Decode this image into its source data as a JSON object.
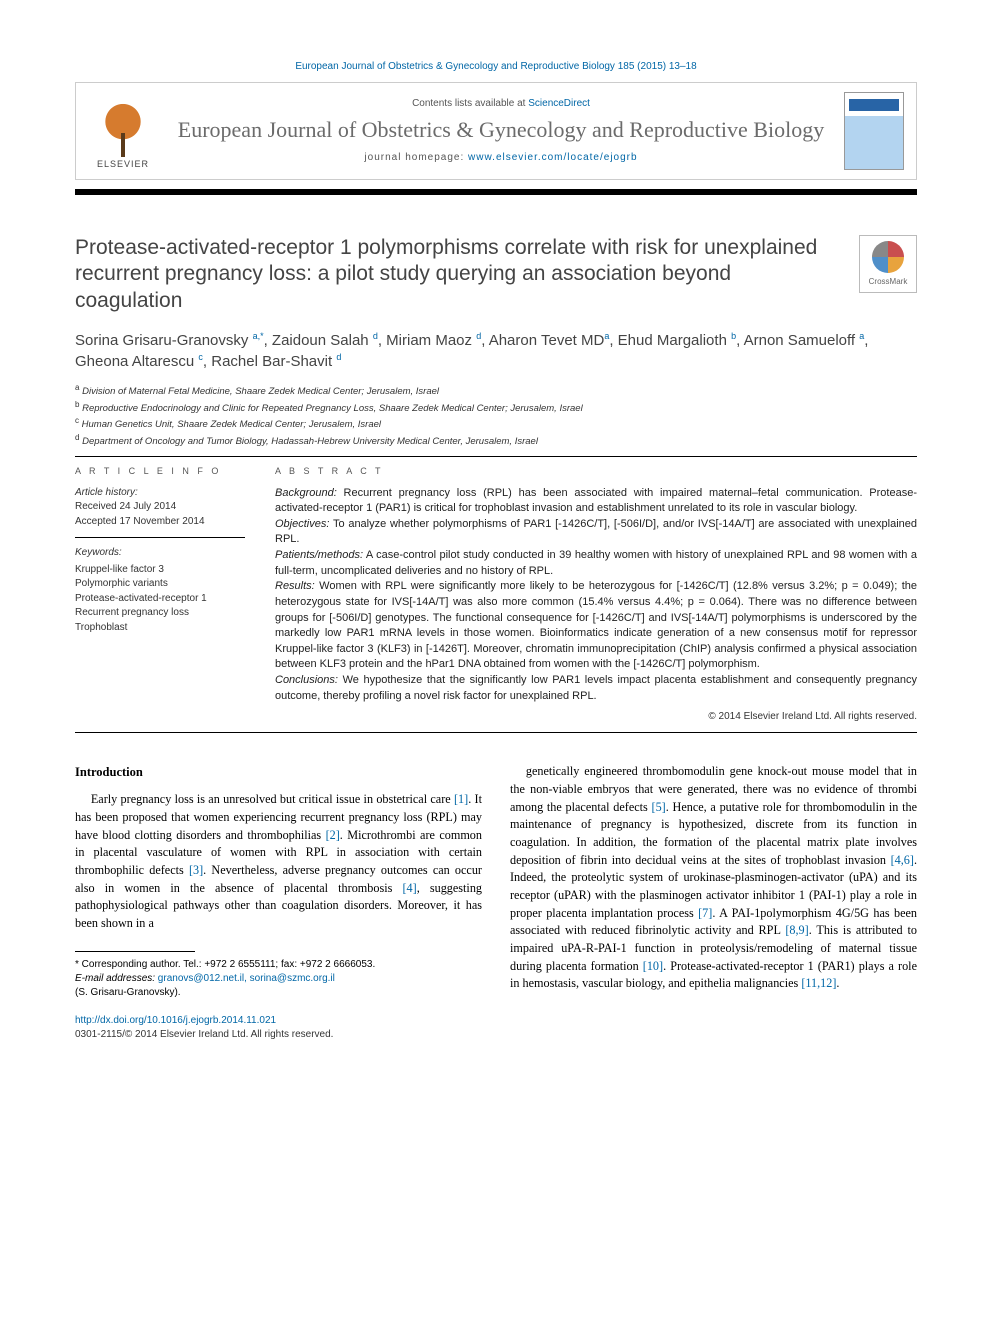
{
  "top_citation": "European Journal of Obstetrics & Gynecology and Reproductive Biology 185 (2015) 13–18",
  "masthead": {
    "contents_prefix": "Contents lists available at ",
    "contents_link": "ScienceDirect",
    "journal_name": "European Journal of Obstetrics & Gynecology and Reproductive Biology",
    "homepage_prefix": "journal homepage: ",
    "homepage_url": "www.elsevier.com/locate/ejogrb",
    "publisher_mark": "ELSEVIER",
    "crossmark_label": "CrossMark"
  },
  "article": {
    "title": "Protease-activated-receptor 1 polymorphisms correlate with risk for unexplained recurrent pregnancy loss: a pilot study querying an association beyond coagulation",
    "authors_html": "Sorina Grisaru-Granovsky <sup>a,*</sup>, Zaidoun Salah <sup>d</sup>, Miriam Maoz <sup>d</sup>, Aharon Tevet MD<sup>a</sup>, Ehud Margalioth <sup>b</sup>, Arnon Samueloff <sup>a</sup>, Gheona Altarescu <sup>c</sup>, Rachel Bar-Shavit <sup>d</sup>",
    "affiliations": [
      {
        "sup": "a",
        "text": "Division of Maternal Fetal Medicine, Shaare Zedek Medical Center; Jerusalem, Israel"
      },
      {
        "sup": "b",
        "text": "Reproductive Endocrinology and Clinic for Repeated Pregnancy Loss, Shaare Zedek Medical Center; Jerusalem, Israel"
      },
      {
        "sup": "c",
        "text": "Human Genetics Unit, Shaare Zedek Medical Center; Jerusalem, Israel"
      },
      {
        "sup": "d",
        "text": "Department of Oncology and Tumor Biology, Hadassah-Hebrew University Medical Center, Jerusalem, Israel"
      }
    ]
  },
  "info": {
    "head": "A R T I C L E   I N F O",
    "history_label": "Article history:",
    "received": "Received 24 July 2014",
    "accepted": "Accepted 17 November 2014",
    "keywords_label": "Keywords:",
    "keywords": [
      "Kruppel-like factor 3",
      "Polymorphic variants",
      "Protease-activated-receptor 1",
      "Recurrent pregnancy loss",
      "Trophoblast"
    ]
  },
  "abstract": {
    "head": "A B S T R A C T",
    "segments": [
      {
        "label": "Background:",
        "text": " Recurrent pregnancy loss (RPL) has been associated with impaired maternal–fetal communication. Protease-activated-receptor 1 (PAR1) is critical for trophoblast invasion and establishment unrelated to its role in vascular biology."
      },
      {
        "label": "Objectives:",
        "text": " To analyze whether polymorphisms of PAR1 [-1426C/T], [-506I/D], and/or IVS[-14A/T] are associated with unexplained RPL."
      },
      {
        "label": "Patients/methods:",
        "text": " A case-control pilot study conducted in 39 healthy women with history of unexplained RPL and 98 women with a full-term, uncomplicated deliveries and no history of RPL."
      },
      {
        "label": "Results:",
        "text": " Women with RPL were significantly more likely to be heterozygous for [-1426C/T] (12.8% versus 3.2%; p = 0.049); the heterozygous state for IVS[-14A/T] was also more common (15.4% versus 4.4%; p = 0.064). There was no difference between groups for [-506I/D] genotypes. The functional consequence for [-1426C/T] and IVS[-14A/T] polymorphisms is underscored by the markedly low PAR1 mRNA levels in those women. Bioinformatics indicate generation of a new consensus motif for repressor Kruppel-like factor 3 (KLF3) in [-1426T]. Moreover, chromatin immunoprecipitation (ChIP) analysis confirmed a physical association between KLF3 protein and the hPar1 DNA obtained from women with the [-1426C/T] polymorphism."
      },
      {
        "label": "Conclusions:",
        "text": " We hypothesize that the significantly low PAR1 levels impact placenta establishment and consequently pregnancy outcome, thereby profiling a novel risk factor for unexplained RPL."
      }
    ],
    "copyright": "© 2014 Elsevier Ireland Ltd. All rights reserved."
  },
  "body": {
    "intro_head": "Introduction",
    "col1_para": "Early pregnancy loss is an unresolved but critical issue in obstetrical care [1]. It has been proposed that women experiencing recurrent pregnancy loss (RPL) may have blood clotting disorders and thrombophilias [2]. Microthrombi are common in placental vasculature of women with RPL in association with certain thrombophilic defects [3]. Nevertheless, adverse pregnancy outcomes can occur also in women in the absence of placental thrombosis [4], suggesting pathophysiological pathways other than coagulation disorders. Moreover, it has been shown in a",
    "col2_para": "genetically engineered thrombomodulin gene knock-out mouse model that in the non-viable embryos that were generated, there was no evidence of thrombi among the placental defects [5]. Hence, a putative role for thrombomodulin in the maintenance of pregnancy is hypothesized, discrete from its function in coagulation. In addition, the formation of the placental matrix plate involves deposition of fibrin into decidual veins at the sites of trophoblast invasion [4,6]. Indeed, the proteolytic system of urokinase-plasminogen-activator (uPA) and its receptor (uPAR) with the plasminogen activator inhibitor 1 (PAI-1) play a role in proper placenta implantation process [7]. A PAI-1polymorphism 4G/5G has been associated with reduced fibrinolytic activity and RPL [8,9]. This is attributed to impaired uPA-R-PAI-1 function in proteolysis/remodeling of maternal tissue during placenta formation [10]. Protease-activated-receptor 1 (PAR1) plays a role in hemostasis, vascular biology, and epithelia malignancies [11,12].",
    "refs_col1": {
      "1": "[1]",
      "2": "[2]",
      "3": "[3]",
      "4": "[4]"
    },
    "refs_col2": {
      "5": "[5]",
      "46": "[4,6]",
      "7": "[7]",
      "89": "[8,9]",
      "10": "[10]",
      "1112": "[11,12]"
    }
  },
  "footnotes": {
    "corr": "* Corresponding author. Tel.: +972 2 6555111; fax: +972 2 6666053.",
    "email_label": "E-mail addresses:",
    "emails": " granovs@012.net.il, sorina@szmc.org.il",
    "author_paren": "(S. Grisaru-Granovsky)."
  },
  "doi": {
    "url": "http://dx.doi.org/10.1016/j.ejogrb.2014.11.021",
    "issn_line": "0301-2115/© 2014 Elsevier Ireland Ltd. All rights reserved."
  }
}
